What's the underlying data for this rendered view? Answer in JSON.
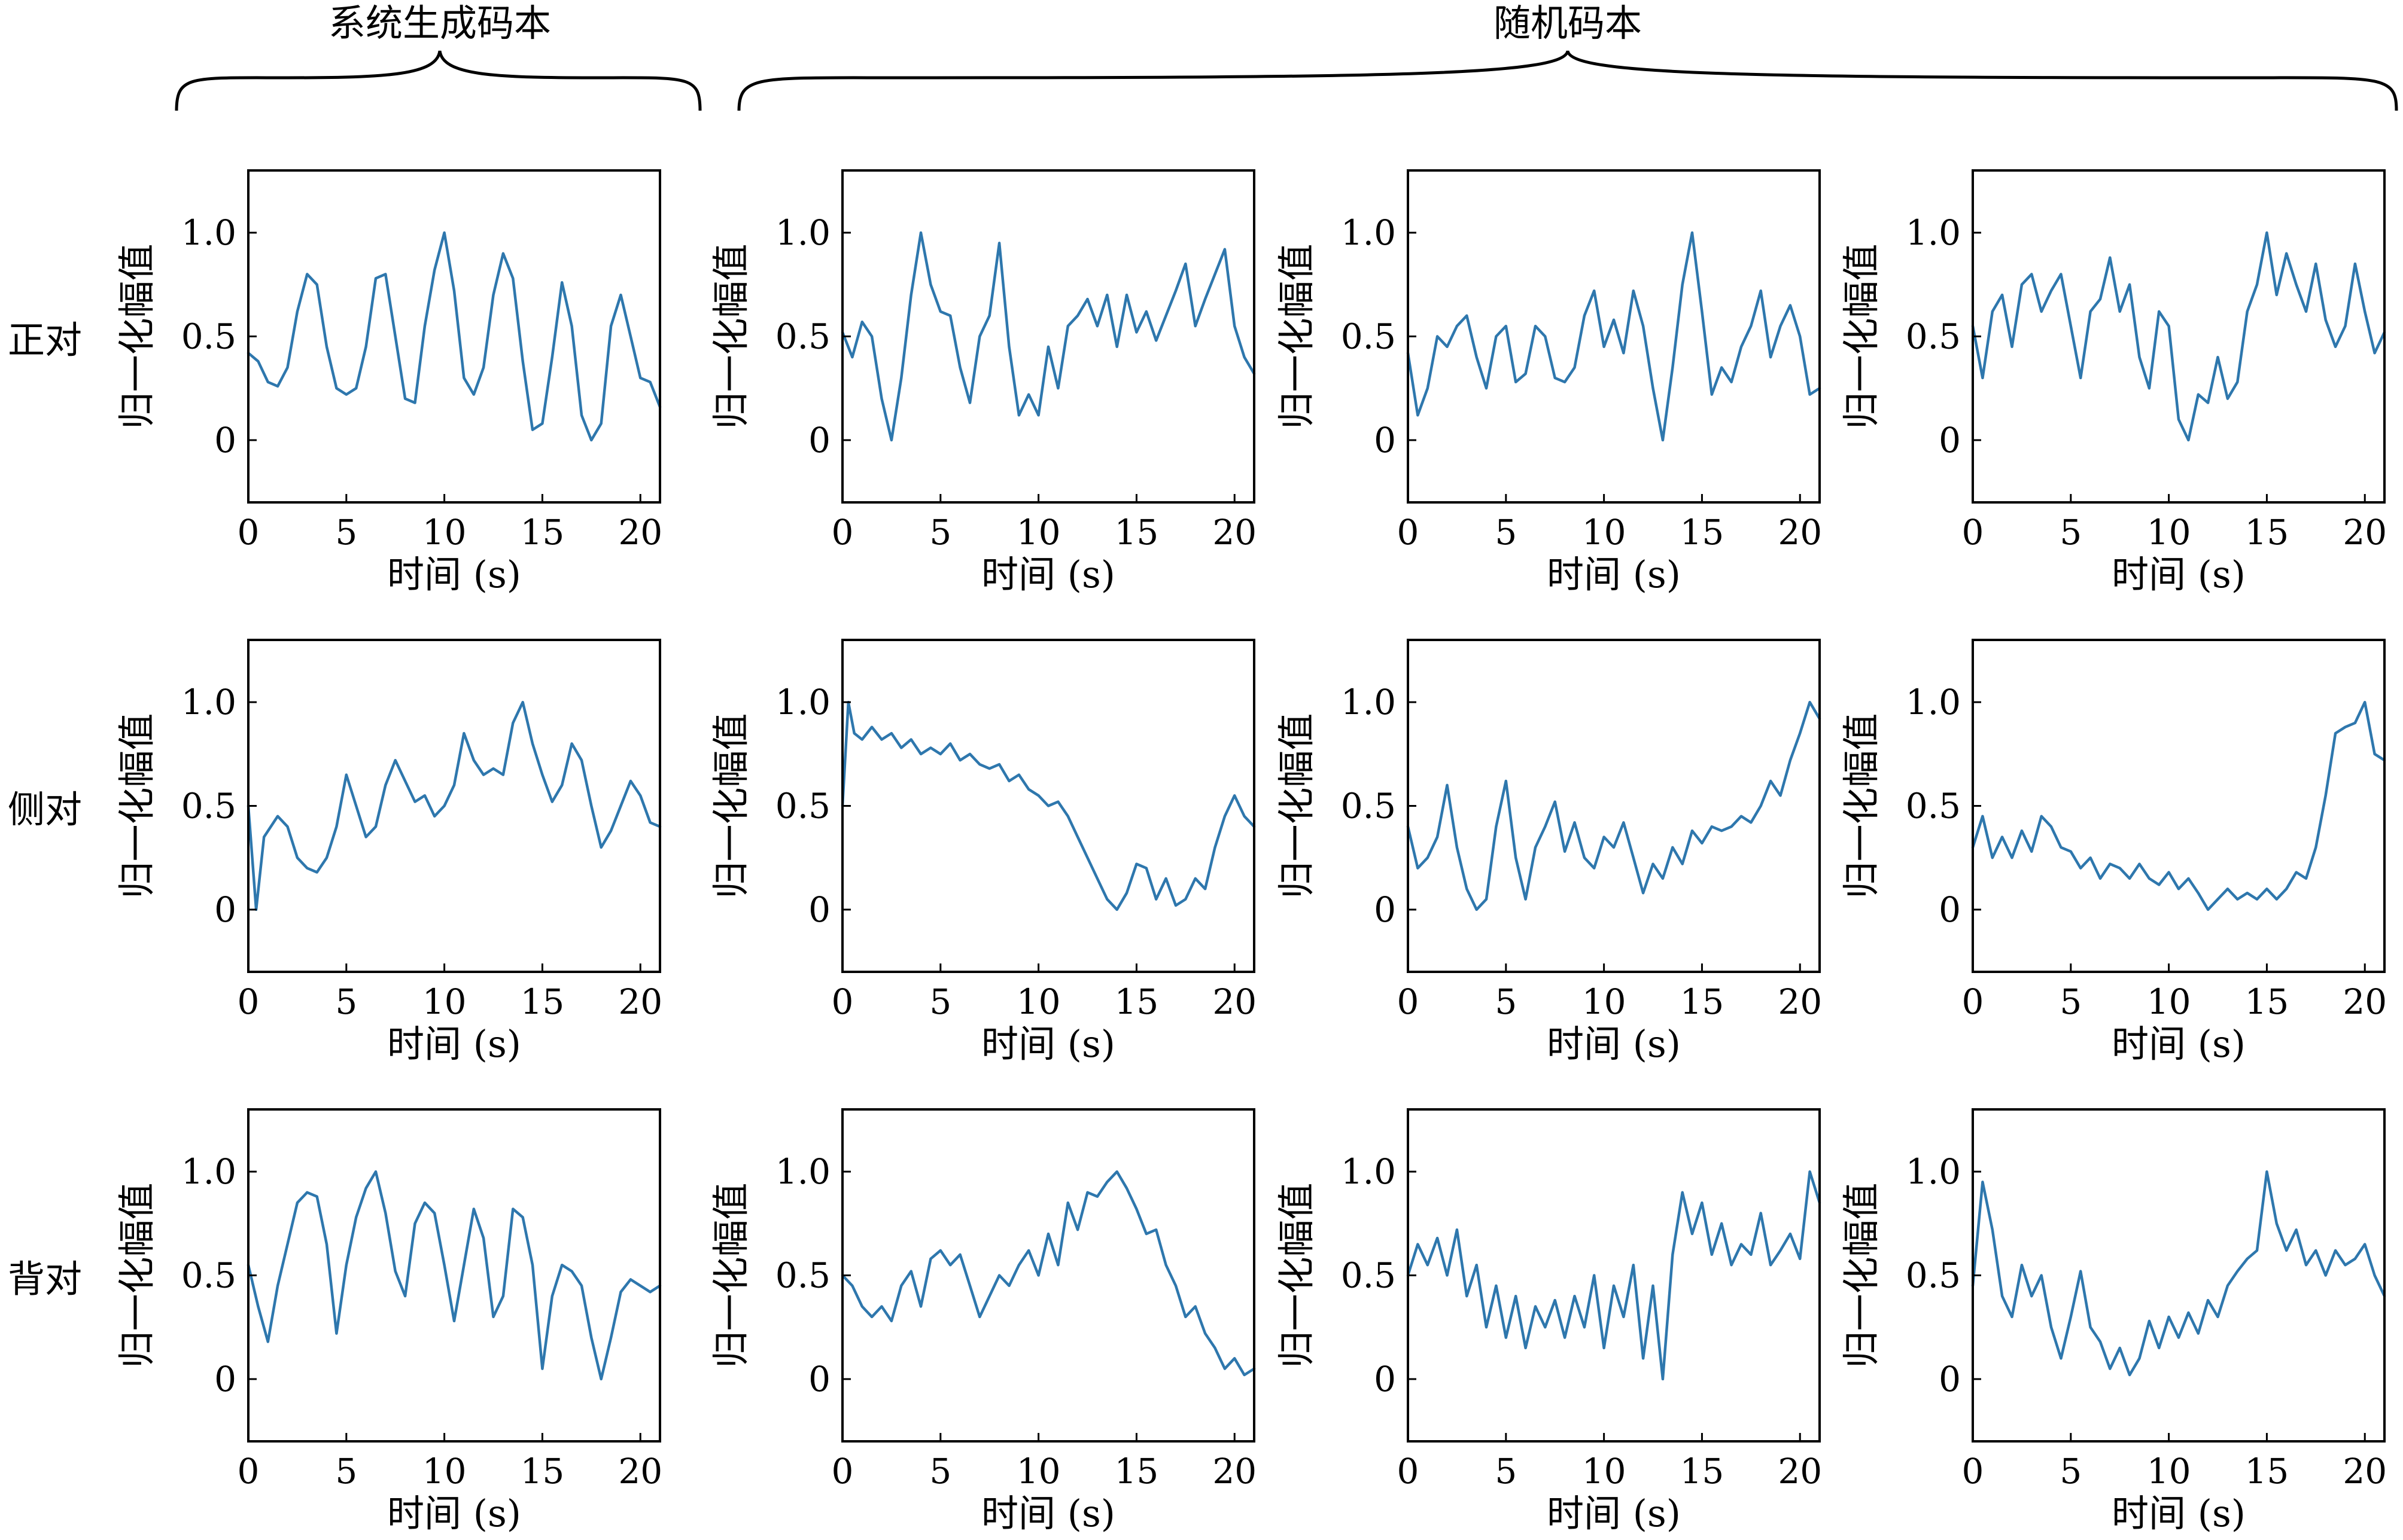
{
  "figure": {
    "group_labels": [
      "系统生成码本",
      "随机码本"
    ],
    "row_labels": [
      "正对",
      "侧对",
      "背对"
    ],
    "xlabel": "时间 (s)",
    "ylabel": "归一化幅值",
    "line_color": "#2e77ad"
  },
  "chart_data": [
    {
      "type": "line",
      "row": "正对",
      "column": 1,
      "xlabel": "时间 (s)",
      "ylabel": "归一化幅值",
      "xlim": [
        0,
        21
      ],
      "ylim": [
        -0.3,
        1.3
      ],
      "xticks": [
        0,
        5,
        10,
        15,
        20
      ],
      "yticks": [
        0,
        0.5,
        1.0
      ],
      "ytick_labels": [
        "0",
        "0.5",
        "1.0"
      ],
      "x": [
        0,
        0.5,
        1,
        1.5,
        2,
        2.5,
        3,
        3.5,
        4,
        4.5,
        5,
        5.5,
        6,
        6.5,
        7,
        7.5,
        8,
        8.5,
        9,
        9.5,
        10,
        10.5,
        11,
        11.5,
        12,
        12.5,
        13,
        13.5,
        14,
        14.5,
        15,
        15.5,
        16,
        16.5,
        17,
        17.5,
        18,
        18.5,
        19,
        19.5,
        20,
        20.5,
        21
      ],
      "y": [
        0.42,
        0.38,
        0.28,
        0.26,
        0.35,
        0.62,
        0.8,
        0.75,
        0.45,
        0.25,
        0.22,
        0.25,
        0.45,
        0.78,
        0.8,
        0.5,
        0.2,
        0.18,
        0.55,
        0.82,
        1.0,
        0.72,
        0.3,
        0.22,
        0.35,
        0.7,
        0.9,
        0.78,
        0.38,
        0.05,
        0.08,
        0.4,
        0.76,
        0.55,
        0.12,
        0.0,
        0.08,
        0.55,
        0.7,
        0.5,
        0.3,
        0.28,
        0.16
      ]
    },
    {
      "type": "line",
      "row": "正对",
      "column": 2,
      "xlabel": "时间 (s)",
      "ylabel": "归一化幅值",
      "xlim": [
        0,
        21
      ],
      "ylim": [
        -0.3,
        1.3
      ],
      "xticks": [
        0,
        5,
        10,
        15,
        20
      ],
      "yticks": [
        0,
        0.5,
        1.0
      ],
      "ytick_labels": [
        "0",
        "0.5",
        "1.0"
      ],
      "x": [
        0,
        0.5,
        1,
        1.5,
        2,
        2.5,
        3,
        3.5,
        4,
        4.5,
        5,
        5.5,
        6,
        6.5,
        7,
        7.5,
        8,
        8.5,
        9,
        9.5,
        10,
        10.5,
        11,
        11.5,
        12,
        12.5,
        13,
        13.5,
        14,
        14.5,
        15,
        15.5,
        16,
        16.5,
        17,
        17.5,
        18,
        18.5,
        19,
        19.5,
        20,
        20.5,
        21
      ],
      "y": [
        0.52,
        0.4,
        0.57,
        0.5,
        0.2,
        0.0,
        0.3,
        0.7,
        1.0,
        0.75,
        0.62,
        0.6,
        0.35,
        0.18,
        0.5,
        0.6,
        0.95,
        0.45,
        0.12,
        0.22,
        0.12,
        0.45,
        0.25,
        0.55,
        0.6,
        0.68,
        0.55,
        0.7,
        0.45,
        0.7,
        0.52,
        0.62,
        0.48,
        0.6,
        0.72,
        0.85,
        0.55,
        0.68,
        0.8,
        0.92,
        0.55,
        0.4,
        0.32
      ]
    },
    {
      "type": "line",
      "row": "正对",
      "column": 3,
      "xlabel": "时间 (s)",
      "ylabel": "归一化幅值",
      "xlim": [
        0,
        21
      ],
      "ylim": [
        -0.3,
        1.3
      ],
      "xticks": [
        0,
        5,
        10,
        15,
        20
      ],
      "yticks": [
        0,
        0.5,
        1.0
      ],
      "ytick_labels": [
        "0",
        "0.5",
        "1.0"
      ],
      "x": [
        0,
        0.5,
        1,
        1.5,
        2,
        2.5,
        3,
        3.5,
        4,
        4.5,
        5,
        5.5,
        6,
        6.5,
        7,
        7.5,
        8,
        8.5,
        9,
        9.5,
        10,
        10.5,
        11,
        11.5,
        12,
        12.5,
        13,
        13.5,
        14,
        14.5,
        15,
        15.5,
        16,
        16.5,
        17,
        17.5,
        18,
        18.5,
        19,
        19.5,
        20,
        20.5,
        21
      ],
      "y": [
        0.42,
        0.12,
        0.25,
        0.5,
        0.45,
        0.55,
        0.6,
        0.4,
        0.25,
        0.5,
        0.55,
        0.28,
        0.32,
        0.55,
        0.5,
        0.3,
        0.28,
        0.35,
        0.6,
        0.72,
        0.45,
        0.58,
        0.42,
        0.72,
        0.55,
        0.25,
        0.0,
        0.35,
        0.75,
        1.0,
        0.62,
        0.22,
        0.35,
        0.28,
        0.45,
        0.55,
        0.72,
        0.4,
        0.55,
        0.65,
        0.5,
        0.22,
        0.25
      ]
    },
    {
      "type": "line",
      "row": "正对",
      "column": 4,
      "xlabel": "时间 (s)",
      "ylabel": "归一化幅值",
      "xlim": [
        0,
        21
      ],
      "ylim": [
        -0.3,
        1.3
      ],
      "xticks": [
        0,
        5,
        10,
        15,
        20
      ],
      "yticks": [
        0,
        0.5,
        1.0
      ],
      "ytick_labels": [
        "0",
        "0.5",
        "1.0"
      ],
      "x": [
        0,
        0.5,
        1,
        1.5,
        2,
        2.5,
        3,
        3.5,
        4,
        4.5,
        5,
        5.5,
        6,
        6.5,
        7,
        7.5,
        8,
        8.5,
        9,
        9.5,
        10,
        10.5,
        11,
        11.5,
        12,
        12.5,
        13,
        13.5,
        14,
        14.5,
        15,
        15.5,
        16,
        16.5,
        17,
        17.5,
        18,
        18.5,
        19,
        19.5,
        20,
        20.5,
        21
      ],
      "y": [
        0.55,
        0.3,
        0.62,
        0.7,
        0.45,
        0.75,
        0.8,
        0.62,
        0.72,
        0.8,
        0.55,
        0.3,
        0.62,
        0.68,
        0.88,
        0.62,
        0.75,
        0.4,
        0.25,
        0.62,
        0.55,
        0.1,
        0.0,
        0.22,
        0.18,
        0.4,
        0.2,
        0.28,
        0.62,
        0.75,
        1.0,
        0.7,
        0.9,
        0.75,
        0.62,
        0.85,
        0.58,
        0.45,
        0.55,
        0.85,
        0.62,
        0.42,
        0.52
      ]
    },
    {
      "type": "line",
      "row": "侧对",
      "column": 1,
      "xlabel": "时间 (s)",
      "ylabel": "归一化幅值",
      "xlim": [
        0,
        21
      ],
      "ylim": [
        -0.3,
        1.3
      ],
      "xticks": [
        0,
        5,
        10,
        15,
        20
      ],
      "yticks": [
        0,
        0.5,
        1.0
      ],
      "ytick_labels": [
        "0",
        "0.5",
        "1.0"
      ],
      "x": [
        0,
        0.4,
        0.8,
        1.5,
        2,
        2.5,
        3,
        3.5,
        4,
        4.5,
        5,
        5.5,
        6,
        6.5,
        7,
        7.5,
        8,
        8.5,
        9,
        9.5,
        10,
        10.5,
        11,
        11.5,
        12,
        12.5,
        13,
        13.5,
        14,
        14.5,
        15,
        15.5,
        16,
        16.5,
        17,
        17.5,
        18,
        18.5,
        19,
        19.5,
        20,
        20.5,
        21
      ],
      "y": [
        0.5,
        0.0,
        0.35,
        0.45,
        0.4,
        0.25,
        0.2,
        0.18,
        0.25,
        0.4,
        0.65,
        0.5,
        0.35,
        0.4,
        0.6,
        0.72,
        0.62,
        0.52,
        0.55,
        0.45,
        0.5,
        0.6,
        0.85,
        0.72,
        0.65,
        0.68,
        0.65,
        0.9,
        1.0,
        0.8,
        0.65,
        0.52,
        0.6,
        0.8,
        0.72,
        0.5,
        0.3,
        0.38,
        0.5,
        0.62,
        0.55,
        0.42,
        0.4
      ]
    },
    {
      "type": "line",
      "row": "侧对",
      "column": 2,
      "xlabel": "时间 (s)",
      "ylabel": "归一化幅值",
      "xlim": [
        0,
        21
      ],
      "ylim": [
        -0.3,
        1.3
      ],
      "xticks": [
        0,
        5,
        10,
        15,
        20
      ],
      "yticks": [
        0,
        0.5,
        1.0
      ],
      "ytick_labels": [
        "0",
        "0.5",
        "1.0"
      ],
      "x": [
        0,
        0.3,
        0.6,
        1,
        1.5,
        2,
        2.5,
        3,
        3.5,
        4,
        4.5,
        5,
        5.5,
        6,
        6.5,
        7,
        7.5,
        8,
        8.5,
        9,
        9.5,
        10,
        10.5,
        11,
        11.5,
        12,
        12.5,
        13,
        13.5,
        14,
        14.5,
        15,
        15.5,
        16,
        16.5,
        17,
        17.5,
        18,
        18.5,
        19,
        19.5,
        20,
        20.5,
        21
      ],
      "y": [
        0.5,
        1.0,
        0.85,
        0.82,
        0.88,
        0.82,
        0.85,
        0.78,
        0.82,
        0.75,
        0.78,
        0.75,
        0.8,
        0.72,
        0.75,
        0.7,
        0.68,
        0.7,
        0.62,
        0.65,
        0.58,
        0.55,
        0.5,
        0.52,
        0.45,
        0.35,
        0.25,
        0.15,
        0.05,
        0.0,
        0.08,
        0.22,
        0.2,
        0.05,
        0.15,
        0.02,
        0.05,
        0.15,
        0.1,
        0.3,
        0.45,
        0.55,
        0.45,
        0.4
      ]
    },
    {
      "type": "line",
      "row": "侧对",
      "column": 3,
      "xlabel": "时间 (s)",
      "ylabel": "归一化幅值",
      "xlim": [
        0,
        21
      ],
      "ylim": [
        -0.3,
        1.3
      ],
      "xticks": [
        0,
        5,
        10,
        15,
        20
      ],
      "yticks": [
        0,
        0.5,
        1.0
      ],
      "ytick_labels": [
        "0",
        "0.5",
        "1.0"
      ],
      "x": [
        0,
        0.5,
        1,
        1.5,
        2,
        2.5,
        3,
        3.5,
        4,
        4.5,
        5,
        5.5,
        6,
        6.5,
        7,
        7.5,
        8,
        8.5,
        9,
        9.5,
        10,
        10.5,
        11,
        11.5,
        12,
        12.5,
        13,
        13.5,
        14,
        14.5,
        15,
        15.5,
        16,
        16.5,
        17,
        17.5,
        18,
        18.5,
        19,
        19.5,
        20,
        20.5,
        21
      ],
      "y": [
        0.4,
        0.2,
        0.25,
        0.35,
        0.6,
        0.3,
        0.1,
        0.0,
        0.05,
        0.4,
        0.62,
        0.25,
        0.05,
        0.3,
        0.4,
        0.52,
        0.28,
        0.42,
        0.25,
        0.2,
        0.35,
        0.3,
        0.42,
        0.25,
        0.08,
        0.22,
        0.15,
        0.3,
        0.22,
        0.38,
        0.32,
        0.4,
        0.38,
        0.4,
        0.45,
        0.42,
        0.5,
        0.62,
        0.55,
        0.72,
        0.85,
        1.0,
        0.92
      ]
    },
    {
      "type": "line",
      "row": "侧对",
      "column": 4,
      "xlabel": "时间 (s)",
      "ylabel": "归一化幅值",
      "xlim": [
        0,
        21
      ],
      "ylim": [
        -0.3,
        1.3
      ],
      "xticks": [
        0,
        5,
        10,
        15,
        20
      ],
      "yticks": [
        0,
        0.5,
        1.0
      ],
      "ytick_labels": [
        "0",
        "0.5",
        "1.0"
      ],
      "x": [
        0,
        0.5,
        1,
        1.5,
        2,
        2.5,
        3,
        3.5,
        4,
        4.5,
        5,
        5.5,
        6,
        6.5,
        7,
        7.5,
        8,
        8.5,
        9,
        9.5,
        10,
        10.5,
        11,
        11.5,
        12,
        12.5,
        13,
        13.5,
        14,
        14.5,
        15,
        15.5,
        16,
        16.5,
        17,
        17.5,
        18,
        18.5,
        19,
        19.5,
        20,
        20.5,
        21
      ],
      "y": [
        0.3,
        0.45,
        0.25,
        0.35,
        0.25,
        0.38,
        0.28,
        0.45,
        0.4,
        0.3,
        0.28,
        0.2,
        0.25,
        0.15,
        0.22,
        0.2,
        0.15,
        0.22,
        0.15,
        0.12,
        0.18,
        0.1,
        0.15,
        0.08,
        0.0,
        0.05,
        0.1,
        0.05,
        0.08,
        0.05,
        0.1,
        0.05,
        0.1,
        0.18,
        0.15,
        0.3,
        0.55,
        0.85,
        0.88,
        0.9,
        1.0,
        0.75,
        0.72
      ]
    },
    {
      "type": "line",
      "row": "背对",
      "column": 1,
      "xlabel": "时间 (s)",
      "ylabel": "归一化幅值",
      "xlim": [
        0,
        21
      ],
      "ylim": [
        -0.3,
        1.3
      ],
      "xticks": [
        0,
        5,
        10,
        15,
        20
      ],
      "yticks": [
        0,
        0.5,
        1.0
      ],
      "ytick_labels": [
        "0",
        "0.5",
        "1.0"
      ],
      "x": [
        0,
        0.5,
        1,
        1.5,
        2,
        2.5,
        3,
        3.5,
        4,
        4.5,
        5,
        5.5,
        6,
        6.5,
        7,
        7.5,
        8,
        8.5,
        9,
        9.5,
        10,
        10.5,
        11,
        11.5,
        12,
        12.5,
        13,
        13.5,
        14,
        14.5,
        15,
        15.5,
        16,
        16.5,
        17,
        17.5,
        18,
        18.5,
        19,
        19.5,
        20,
        20.5,
        21
      ],
      "y": [
        0.55,
        0.35,
        0.18,
        0.45,
        0.65,
        0.85,
        0.9,
        0.88,
        0.65,
        0.22,
        0.55,
        0.78,
        0.92,
        1.0,
        0.8,
        0.52,
        0.4,
        0.75,
        0.85,
        0.8,
        0.55,
        0.28,
        0.55,
        0.82,
        0.68,
        0.3,
        0.4,
        0.82,
        0.78,
        0.55,
        0.05,
        0.4,
        0.55,
        0.52,
        0.45,
        0.2,
        0.0,
        0.2,
        0.42,
        0.48,
        0.45,
        0.42,
        0.45
      ]
    },
    {
      "type": "line",
      "row": "背对",
      "column": 2,
      "xlabel": "时间 (s)",
      "ylabel": "归一化幅值",
      "xlim": [
        0,
        21
      ],
      "ylim": [
        -0.3,
        1.3
      ],
      "xticks": [
        0,
        5,
        10,
        15,
        20
      ],
      "yticks": [
        0,
        0.5,
        1.0
      ],
      "ytick_labels": [
        "0",
        "0.5",
        "1.0"
      ],
      "x": [
        0,
        0.5,
        1,
        1.5,
        2,
        2.5,
        3,
        3.5,
        4,
        4.5,
        5,
        5.5,
        6,
        6.5,
        7,
        7.5,
        8,
        8.5,
        9,
        9.5,
        10,
        10.5,
        11,
        11.5,
        12,
        12.5,
        13,
        13.5,
        14,
        14.5,
        15,
        15.5,
        16,
        16.5,
        17,
        17.5,
        18,
        18.5,
        19,
        19.5,
        20,
        20.5,
        21
      ],
      "y": [
        0.5,
        0.45,
        0.35,
        0.3,
        0.35,
        0.28,
        0.45,
        0.52,
        0.35,
        0.58,
        0.62,
        0.55,
        0.6,
        0.45,
        0.3,
        0.4,
        0.5,
        0.45,
        0.55,
        0.62,
        0.5,
        0.7,
        0.55,
        0.85,
        0.72,
        0.9,
        0.88,
        0.95,
        1.0,
        0.92,
        0.82,
        0.7,
        0.72,
        0.55,
        0.45,
        0.3,
        0.35,
        0.22,
        0.15,
        0.05,
        0.1,
        0.02,
        0.05
      ]
    },
    {
      "type": "line",
      "row": "背对",
      "column": 3,
      "xlabel": "时间 (s)",
      "ylabel": "归一化幅值",
      "xlim": [
        0,
        21
      ],
      "ylim": [
        -0.3,
        1.3
      ],
      "xticks": [
        0,
        5,
        10,
        15,
        20
      ],
      "yticks": [
        0,
        0.5,
        1.0
      ],
      "ytick_labels": [
        "0",
        "0.5",
        "1.0"
      ],
      "x": [
        0,
        0.5,
        1,
        1.5,
        2,
        2.5,
        3,
        3.5,
        4,
        4.5,
        5,
        5.5,
        6,
        6.5,
        7,
        7.5,
        8,
        8.5,
        9,
        9.5,
        10,
        10.5,
        11,
        11.5,
        12,
        12.5,
        13,
        13.5,
        14,
        14.5,
        15,
        15.5,
        16,
        16.5,
        17,
        17.5,
        18,
        18.5,
        19,
        19.5,
        20,
        20.5,
        21
      ],
      "y": [
        0.5,
        0.65,
        0.55,
        0.68,
        0.5,
        0.72,
        0.4,
        0.55,
        0.25,
        0.45,
        0.2,
        0.4,
        0.15,
        0.35,
        0.25,
        0.38,
        0.2,
        0.4,
        0.25,
        0.5,
        0.15,
        0.45,
        0.3,
        0.55,
        0.1,
        0.45,
        0.0,
        0.6,
        0.9,
        0.7,
        0.85,
        0.6,
        0.75,
        0.55,
        0.65,
        0.6,
        0.8,
        0.55,
        0.62,
        0.7,
        0.58,
        1.0,
        0.85
      ]
    },
    {
      "type": "line",
      "row": "背对",
      "column": 4,
      "xlabel": "时间 (s)",
      "ylabel": "归一化幅值",
      "xlim": [
        0,
        21
      ],
      "ylim": [
        -0.3,
        1.3
      ],
      "xticks": [
        0,
        5,
        10,
        15,
        20
      ],
      "yticks": [
        0,
        0.5,
        1.0
      ],
      "ytick_labels": [
        "0",
        "0.5",
        "1.0"
      ],
      "x": [
        0,
        0.5,
        1,
        1.5,
        2,
        2.5,
        3,
        3.5,
        4,
        4.5,
        5,
        5.5,
        6,
        6.5,
        7,
        7.5,
        8,
        8.5,
        9,
        9.5,
        10,
        10.5,
        11,
        11.5,
        12,
        12.5,
        13,
        13.5,
        14,
        14.5,
        15,
        15.5,
        16,
        16.5,
        17,
        17.5,
        18,
        18.5,
        19,
        19.5,
        20,
        20.5,
        21
      ],
      "y": [
        0.45,
        0.95,
        0.72,
        0.4,
        0.3,
        0.55,
        0.4,
        0.5,
        0.25,
        0.1,
        0.3,
        0.52,
        0.25,
        0.18,
        0.05,
        0.15,
        0.02,
        0.1,
        0.28,
        0.15,
        0.3,
        0.2,
        0.32,
        0.22,
        0.38,
        0.3,
        0.45,
        0.52,
        0.58,
        0.62,
        1.0,
        0.75,
        0.62,
        0.72,
        0.55,
        0.62,
        0.5,
        0.62,
        0.55,
        0.58,
        0.65,
        0.5,
        0.4
      ]
    }
  ]
}
